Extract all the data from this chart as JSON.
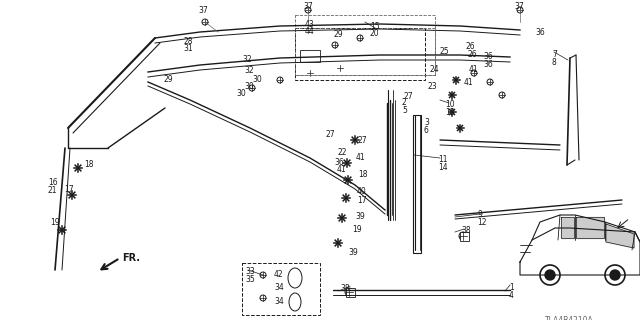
{
  "bg_color": "#ffffff",
  "diagram_code": "TLA4B4210A",
  "col": "#1a1a1a",
  "col_gray": "#666666"
}
